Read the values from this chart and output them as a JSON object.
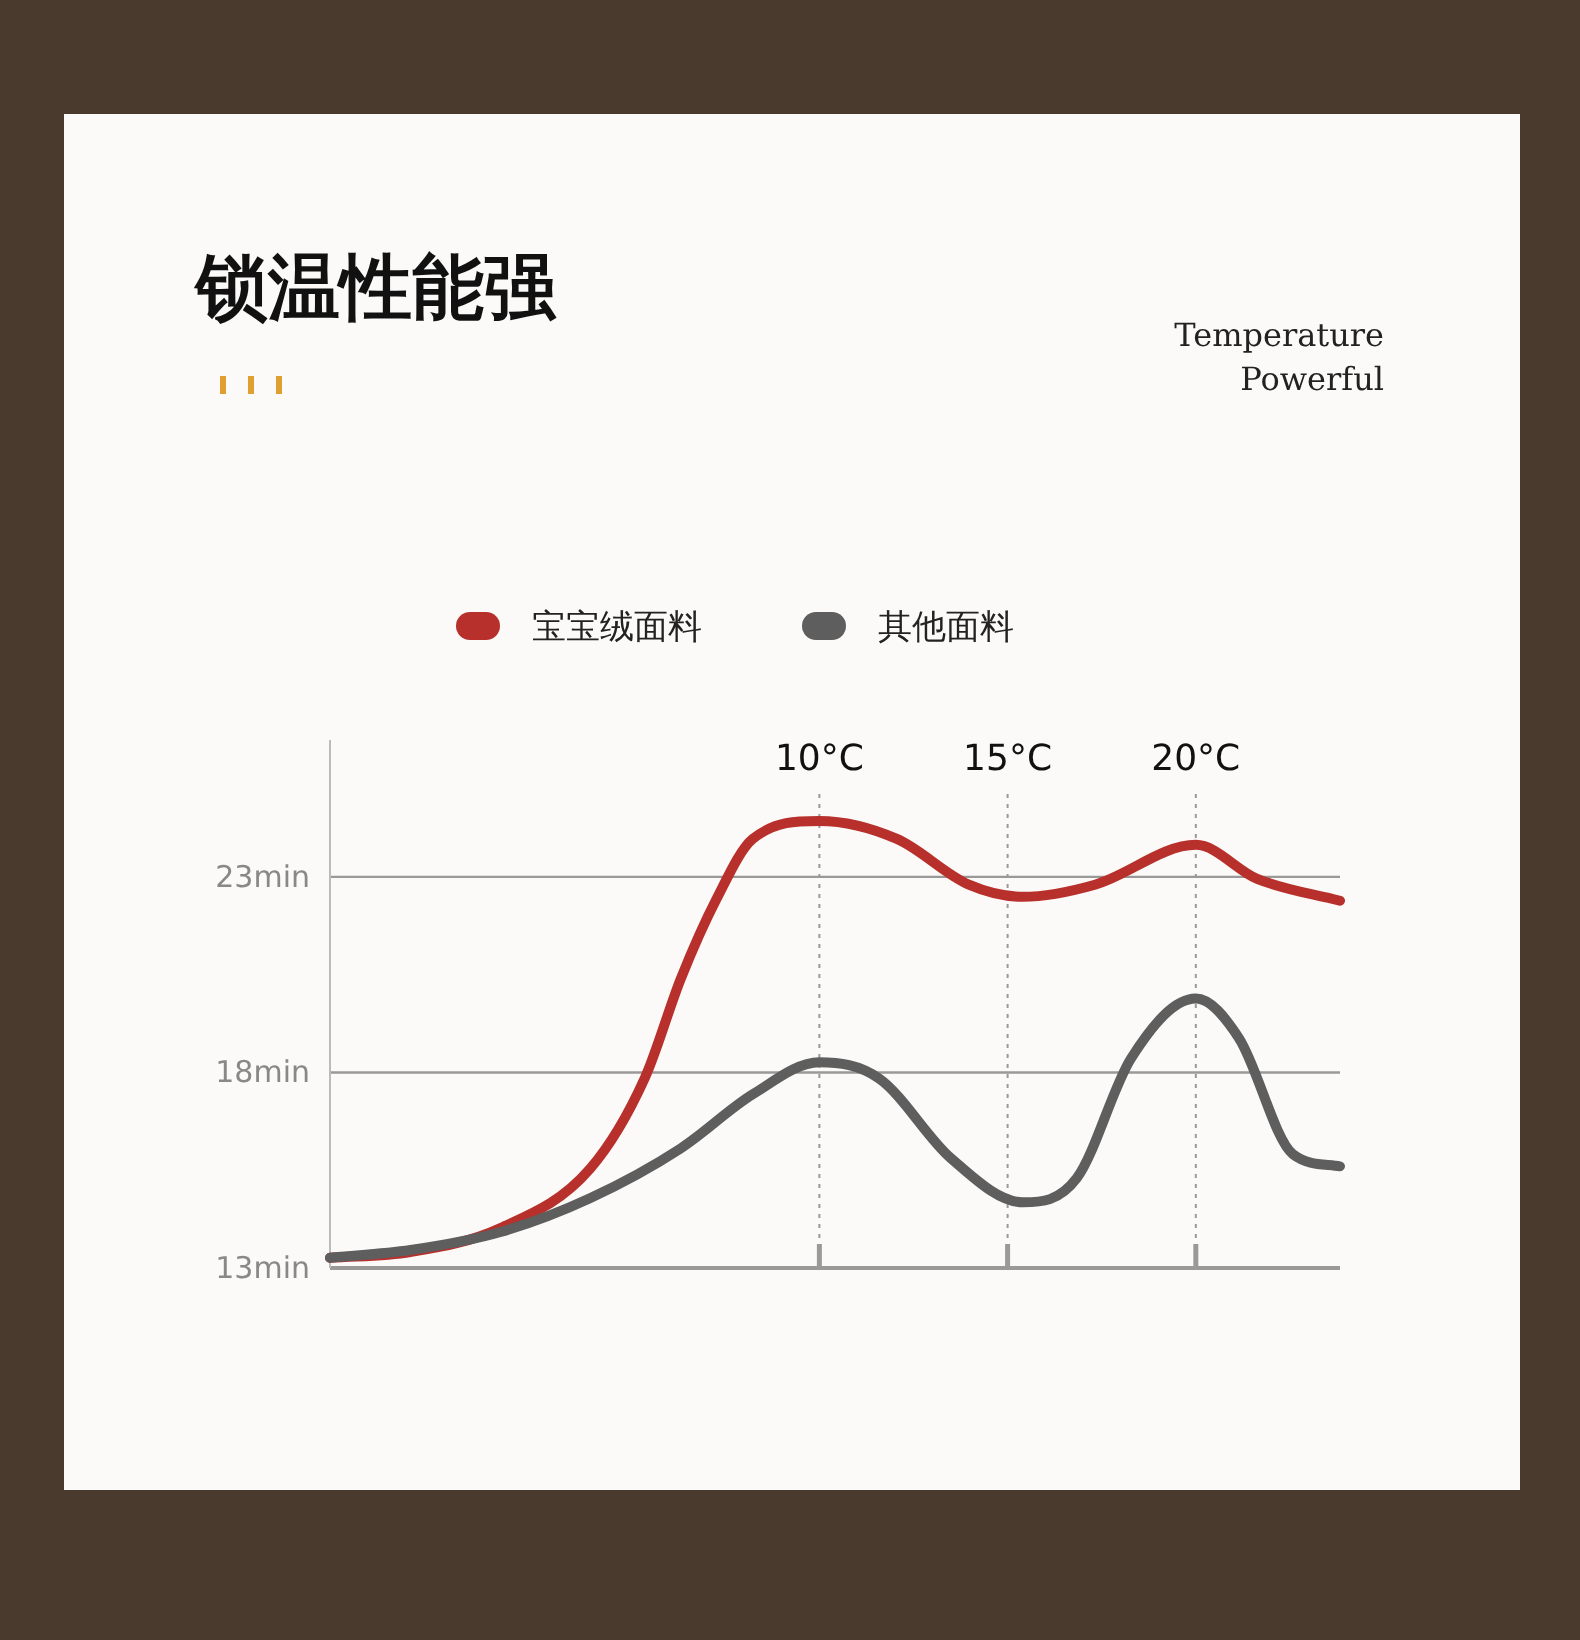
{
  "chart_data": {
    "type": "line",
    "title": "锁温性能强",
    "annotations": [
      "Temperature",
      "Powerful"
    ],
    "series": [
      {
        "name": "宝宝绒面料",
        "color": "#b8302c",
        "x": [
          -3.0,
          -0.86,
          1.53,
          3.92,
          5.36,
          6.32,
          7.27,
          8.23,
          10,
          12.06,
          13.97,
          15.41,
          17.32,
          20,
          21.63,
          23.83
        ],
        "values": [
          13.26,
          13.41,
          14.02,
          15.55,
          17.85,
          20.4,
          22.44,
          23.97,
          24.43,
          23.97,
          22.8,
          22.49,
          22.8,
          23.82,
          22.95,
          22.39
        ]
      },
      {
        "name": "其他面料",
        "color": "#5e5e5e",
        "x": [
          -3.0,
          -0.86,
          1.53,
          3.92,
          6.32,
          8.23,
          10,
          11.58,
          13.49,
          15.41,
          16.84,
          18.28,
          20,
          21.15,
          22.58,
          23.83
        ],
        "values": [
          13.26,
          13.46,
          13.92,
          14.79,
          16.06,
          17.44,
          18.26,
          17.85,
          15.81,
          14.68,
          15.3,
          18.36,
          19.89,
          18.87,
          15.91,
          15.6
        ]
      }
    ],
    "xlim": [
      -3.0,
      23.83
    ],
    "xticks": [
      {
        "value": 10,
        "label": null
      },
      {
        "value": 15,
        "label": null
      },
      {
        "value": 20,
        "label": null
      }
    ],
    "ylim": [
      13,
      26.5
    ],
    "yticks": [
      {
        "value": 13,
        "label": "13min"
      },
      {
        "value": 18,
        "label": "18min"
      },
      {
        "value": 23,
        "label": "23min"
      }
    ],
    "ref_lines": [
      {
        "axis": "x",
        "value": 10,
        "label": "10°C",
        "line_style": "dotted"
      },
      {
        "axis": "x",
        "value": 15,
        "label": "15°C",
        "line_style": "dotted"
      },
      {
        "axis": "x",
        "value": 20,
        "label": "20°C",
        "line_style": "dotted"
      }
    ],
    "grid": "y",
    "legend": "top",
    "tick_labels": "y",
    "line_style": "solid",
    "marker": "none"
  }
}
